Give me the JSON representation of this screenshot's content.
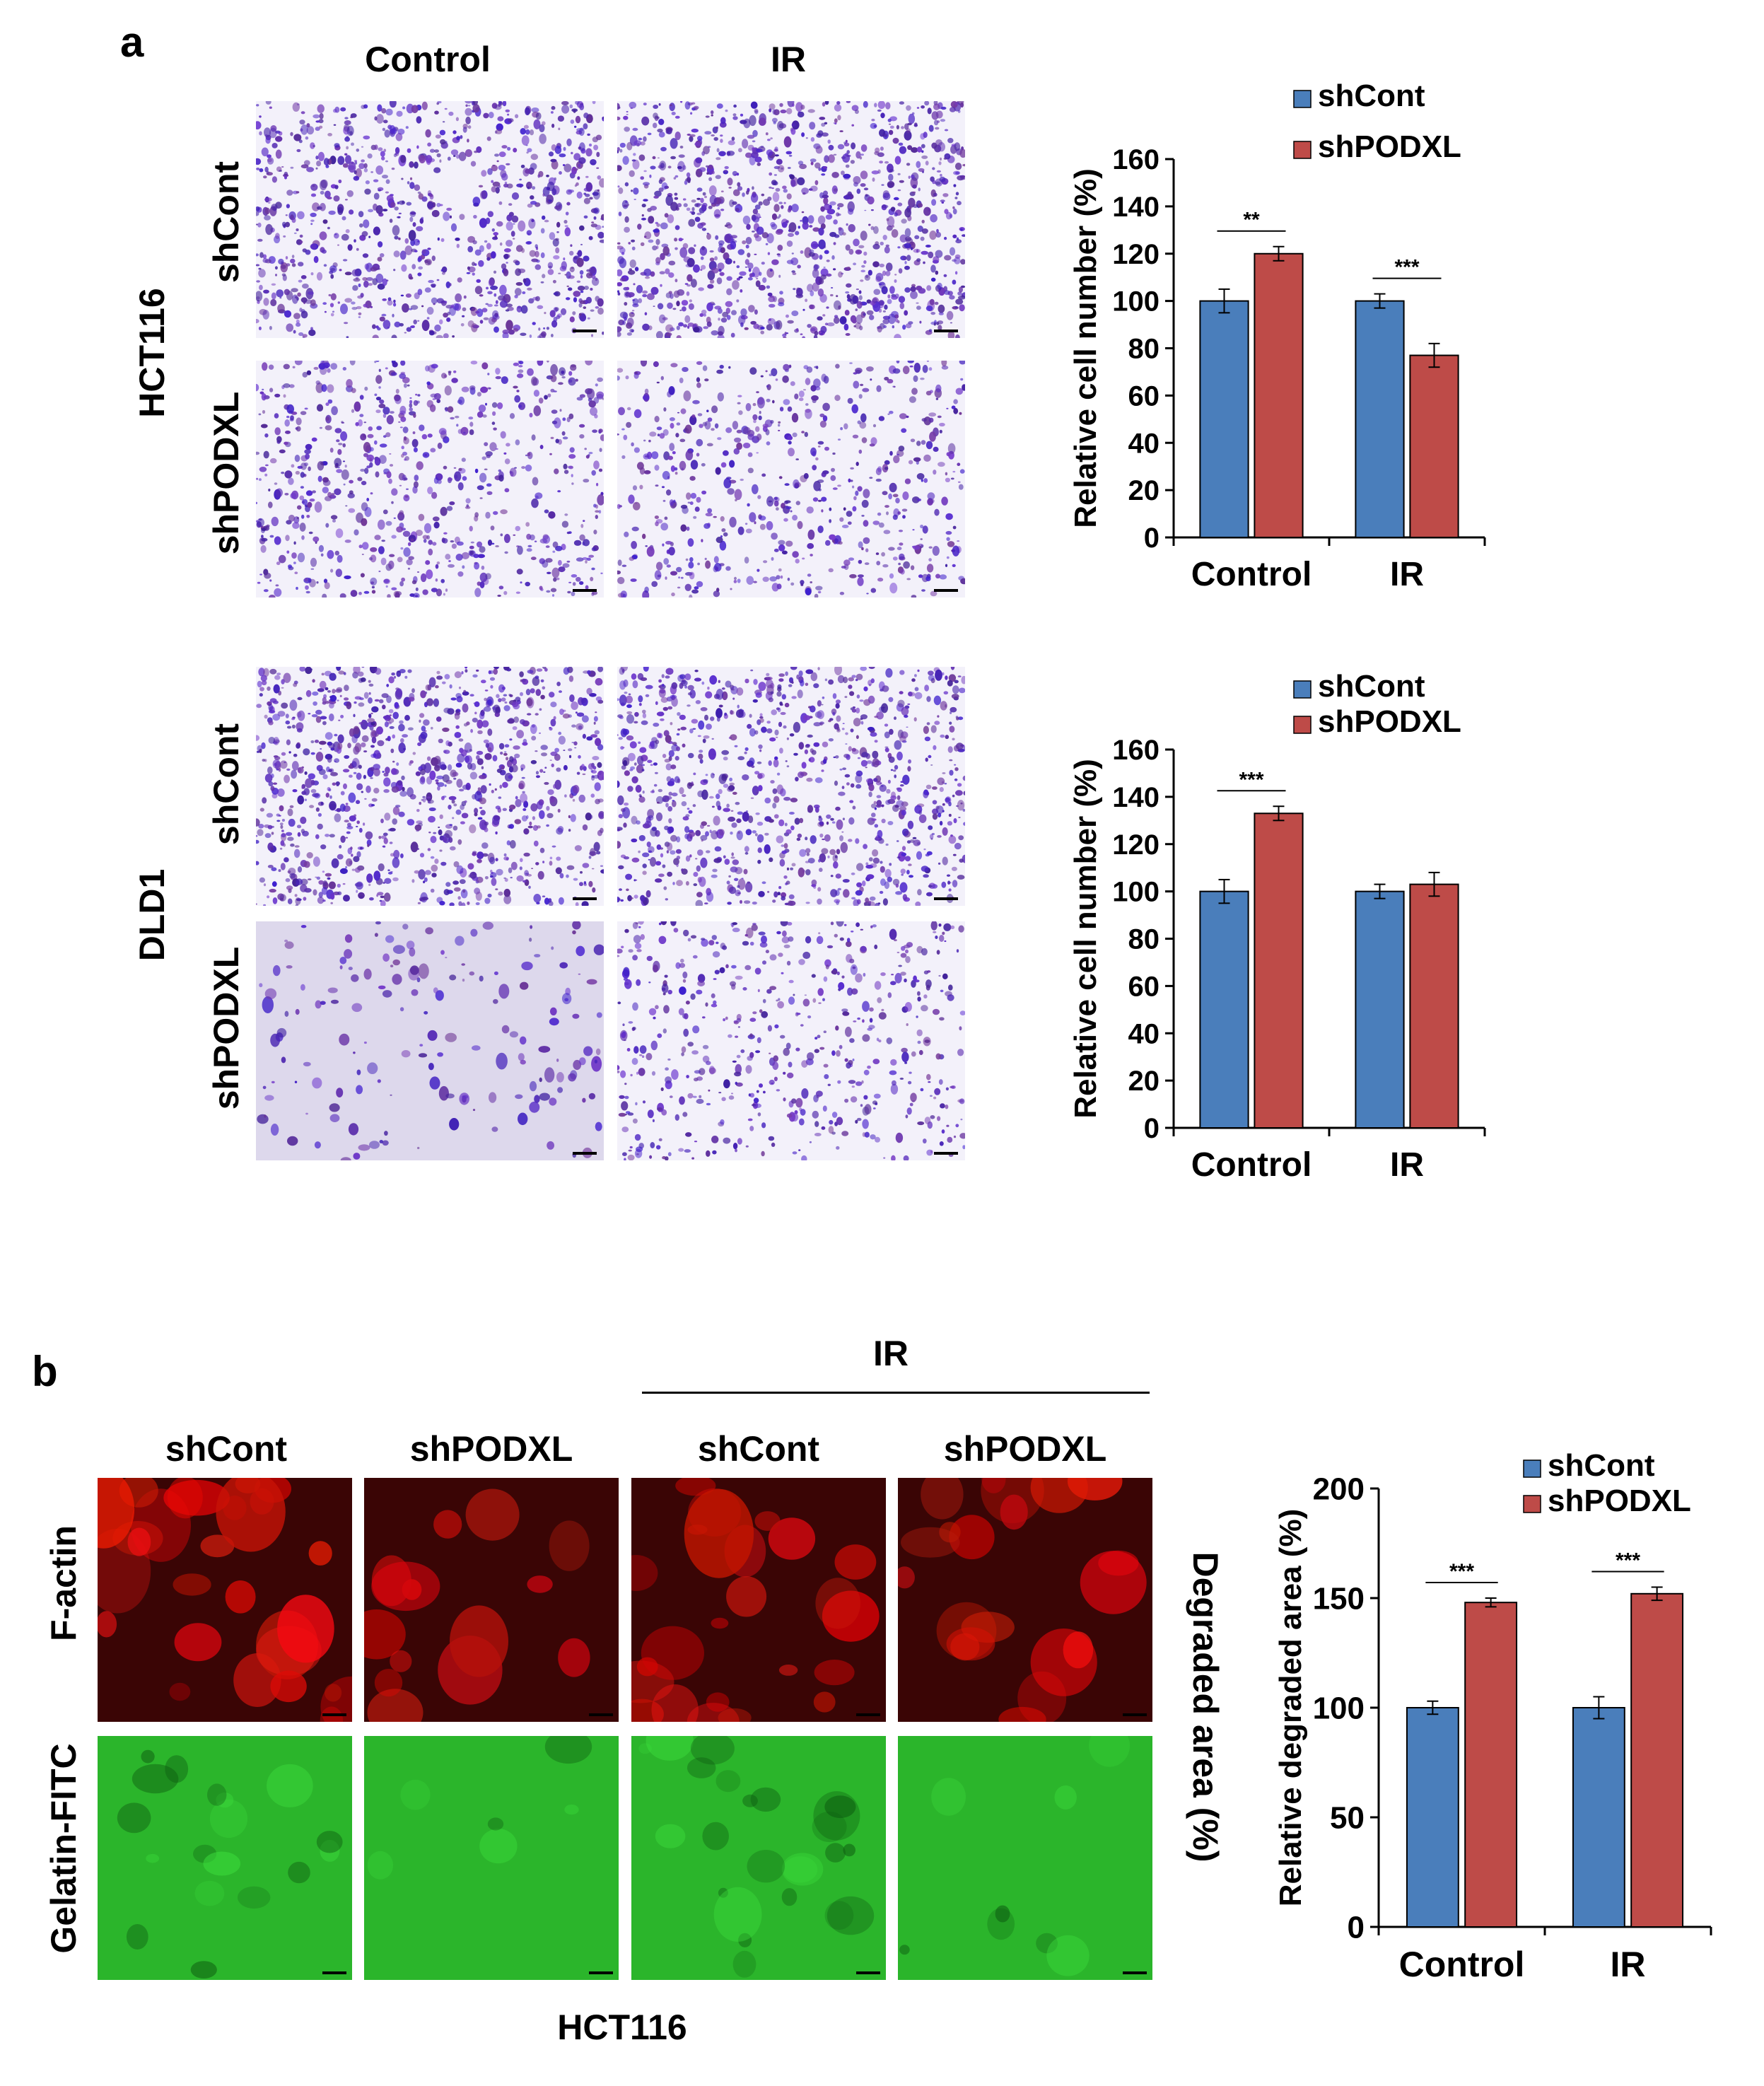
{
  "panel_a": {
    "letter": "a",
    "columns": [
      "Control",
      "IR"
    ],
    "cell_lines": [
      "HCT116",
      "DLD1"
    ],
    "rows": [
      "shCont",
      "shPODXL"
    ]
  },
  "panel_b": {
    "letter": "b",
    "ir_label": "IR",
    "columns": [
      "shCont",
      "shPODXL",
      "shCont",
      "shPODXL"
    ],
    "rows": [
      "F-actin",
      "Gelatin-FITC"
    ],
    "side_label": "Degraded area (%)",
    "bottom_label": "HCT116"
  },
  "colors": {
    "shCont": "#4a7ebb",
    "shPODXL": "#be4b48",
    "crystal_violet": "#5a2fb0",
    "f_actin": "#e01010",
    "gelatin": "#22c022"
  },
  "icons": [
    "scale-bar",
    "legend-swatch"
  ],
  "chart_data": [
    {
      "type": "bar",
      "panel": "a-HCT116",
      "categories": [
        "Control",
        "IR"
      ],
      "series": [
        {
          "name": "shCont",
          "values": [
            100,
            100
          ],
          "errors": [
            5,
            3
          ]
        },
        {
          "name": "shPODXL",
          "values": [
            120,
            77
          ],
          "errors": [
            3,
            5
          ]
        }
      ],
      "ylabel": "Relative cell number (%)",
      "ylim": [
        0,
        160
      ],
      "yticks": [
        0,
        20,
        40,
        60,
        80,
        100,
        120,
        140,
        160
      ],
      "significance": [
        {
          "category": "Control",
          "label": "**"
        },
        {
          "category": "IR",
          "label": "***"
        }
      ],
      "legend": "top-right"
    },
    {
      "type": "bar",
      "panel": "a-DLD1",
      "categories": [
        "Control",
        "IR"
      ],
      "series": [
        {
          "name": "shCont",
          "values": [
            100,
            100
          ],
          "errors": [
            5,
            3
          ]
        },
        {
          "name": "shPODXL",
          "values": [
            133,
            103
          ],
          "errors": [
            3,
            5
          ]
        }
      ],
      "ylabel": "Relative cell number (%)",
      "ylim": [
        0,
        160
      ],
      "yticks": [
        0,
        20,
        40,
        60,
        80,
        100,
        120,
        140,
        160
      ],
      "significance": [
        {
          "category": "Control",
          "label": "***"
        }
      ],
      "legend": "top-right"
    },
    {
      "type": "bar",
      "panel": "b",
      "categories": [
        "Control",
        "IR"
      ],
      "series": [
        {
          "name": "shCont",
          "values": [
            100,
            100
          ],
          "errors": [
            3,
            5
          ]
        },
        {
          "name": "shPODXL",
          "values": [
            148,
            152
          ],
          "errors": [
            2,
            3
          ]
        }
      ],
      "ylabel": "Relative degraded area (%)",
      "ylim": [
        0,
        200
      ],
      "yticks": [
        0,
        50,
        100,
        150,
        200
      ],
      "significance": [
        {
          "category": "Control",
          "label": "***"
        },
        {
          "category": "IR",
          "label": "***"
        }
      ],
      "legend": "top-right"
    }
  ]
}
